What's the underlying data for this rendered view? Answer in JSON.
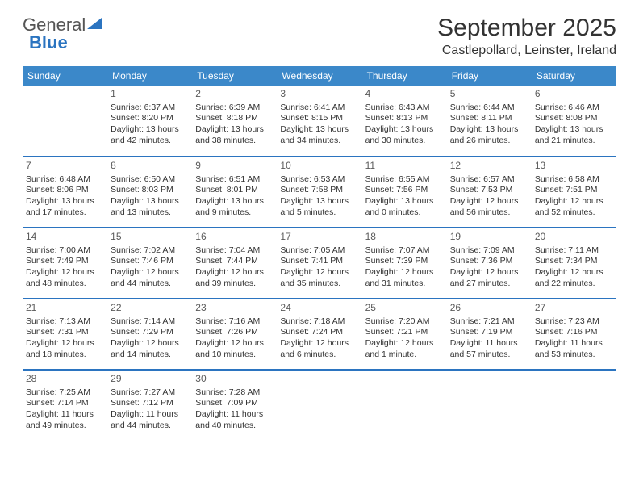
{
  "logo": {
    "word1": "General",
    "word2": "Blue"
  },
  "title": "September 2025",
  "location": "Castlepollard, Leinster, Ireland",
  "header_bg": "#3b88c9",
  "separator_color": "#2b74c0",
  "daynames": [
    "Sunday",
    "Monday",
    "Tuesday",
    "Wednesday",
    "Thursday",
    "Friday",
    "Saturday"
  ],
  "weeks": [
    [
      {
        "n": "",
        "sr": "",
        "ss": "",
        "dl": ""
      },
      {
        "n": "1",
        "sr": "Sunrise: 6:37 AM",
        "ss": "Sunset: 8:20 PM",
        "dl": "Daylight: 13 hours and 42 minutes."
      },
      {
        "n": "2",
        "sr": "Sunrise: 6:39 AM",
        "ss": "Sunset: 8:18 PM",
        "dl": "Daylight: 13 hours and 38 minutes."
      },
      {
        "n": "3",
        "sr": "Sunrise: 6:41 AM",
        "ss": "Sunset: 8:15 PM",
        "dl": "Daylight: 13 hours and 34 minutes."
      },
      {
        "n": "4",
        "sr": "Sunrise: 6:43 AM",
        "ss": "Sunset: 8:13 PM",
        "dl": "Daylight: 13 hours and 30 minutes."
      },
      {
        "n": "5",
        "sr": "Sunrise: 6:44 AM",
        "ss": "Sunset: 8:11 PM",
        "dl": "Daylight: 13 hours and 26 minutes."
      },
      {
        "n": "6",
        "sr": "Sunrise: 6:46 AM",
        "ss": "Sunset: 8:08 PM",
        "dl": "Daylight: 13 hours and 21 minutes."
      }
    ],
    [
      {
        "n": "7",
        "sr": "Sunrise: 6:48 AM",
        "ss": "Sunset: 8:06 PM",
        "dl": "Daylight: 13 hours and 17 minutes."
      },
      {
        "n": "8",
        "sr": "Sunrise: 6:50 AM",
        "ss": "Sunset: 8:03 PM",
        "dl": "Daylight: 13 hours and 13 minutes."
      },
      {
        "n": "9",
        "sr": "Sunrise: 6:51 AM",
        "ss": "Sunset: 8:01 PM",
        "dl": "Daylight: 13 hours and 9 minutes."
      },
      {
        "n": "10",
        "sr": "Sunrise: 6:53 AM",
        "ss": "Sunset: 7:58 PM",
        "dl": "Daylight: 13 hours and 5 minutes."
      },
      {
        "n": "11",
        "sr": "Sunrise: 6:55 AM",
        "ss": "Sunset: 7:56 PM",
        "dl": "Daylight: 13 hours and 0 minutes."
      },
      {
        "n": "12",
        "sr": "Sunrise: 6:57 AM",
        "ss": "Sunset: 7:53 PM",
        "dl": "Daylight: 12 hours and 56 minutes."
      },
      {
        "n": "13",
        "sr": "Sunrise: 6:58 AM",
        "ss": "Sunset: 7:51 PM",
        "dl": "Daylight: 12 hours and 52 minutes."
      }
    ],
    [
      {
        "n": "14",
        "sr": "Sunrise: 7:00 AM",
        "ss": "Sunset: 7:49 PM",
        "dl": "Daylight: 12 hours and 48 minutes."
      },
      {
        "n": "15",
        "sr": "Sunrise: 7:02 AM",
        "ss": "Sunset: 7:46 PM",
        "dl": "Daylight: 12 hours and 44 minutes."
      },
      {
        "n": "16",
        "sr": "Sunrise: 7:04 AM",
        "ss": "Sunset: 7:44 PM",
        "dl": "Daylight: 12 hours and 39 minutes."
      },
      {
        "n": "17",
        "sr": "Sunrise: 7:05 AM",
        "ss": "Sunset: 7:41 PM",
        "dl": "Daylight: 12 hours and 35 minutes."
      },
      {
        "n": "18",
        "sr": "Sunrise: 7:07 AM",
        "ss": "Sunset: 7:39 PM",
        "dl": "Daylight: 12 hours and 31 minutes."
      },
      {
        "n": "19",
        "sr": "Sunrise: 7:09 AM",
        "ss": "Sunset: 7:36 PM",
        "dl": "Daylight: 12 hours and 27 minutes."
      },
      {
        "n": "20",
        "sr": "Sunrise: 7:11 AM",
        "ss": "Sunset: 7:34 PM",
        "dl": "Daylight: 12 hours and 22 minutes."
      }
    ],
    [
      {
        "n": "21",
        "sr": "Sunrise: 7:13 AM",
        "ss": "Sunset: 7:31 PM",
        "dl": "Daylight: 12 hours and 18 minutes."
      },
      {
        "n": "22",
        "sr": "Sunrise: 7:14 AM",
        "ss": "Sunset: 7:29 PM",
        "dl": "Daylight: 12 hours and 14 minutes."
      },
      {
        "n": "23",
        "sr": "Sunrise: 7:16 AM",
        "ss": "Sunset: 7:26 PM",
        "dl": "Daylight: 12 hours and 10 minutes."
      },
      {
        "n": "24",
        "sr": "Sunrise: 7:18 AM",
        "ss": "Sunset: 7:24 PM",
        "dl": "Daylight: 12 hours and 6 minutes."
      },
      {
        "n": "25",
        "sr": "Sunrise: 7:20 AM",
        "ss": "Sunset: 7:21 PM",
        "dl": "Daylight: 12 hours and 1 minute."
      },
      {
        "n": "26",
        "sr": "Sunrise: 7:21 AM",
        "ss": "Sunset: 7:19 PM",
        "dl": "Daylight: 11 hours and 57 minutes."
      },
      {
        "n": "27",
        "sr": "Sunrise: 7:23 AM",
        "ss": "Sunset: 7:16 PM",
        "dl": "Daylight: 11 hours and 53 minutes."
      }
    ],
    [
      {
        "n": "28",
        "sr": "Sunrise: 7:25 AM",
        "ss": "Sunset: 7:14 PM",
        "dl": "Daylight: 11 hours and 49 minutes."
      },
      {
        "n": "29",
        "sr": "Sunrise: 7:27 AM",
        "ss": "Sunset: 7:12 PM",
        "dl": "Daylight: 11 hours and 44 minutes."
      },
      {
        "n": "30",
        "sr": "Sunrise: 7:28 AM",
        "ss": "Sunset: 7:09 PM",
        "dl": "Daylight: 11 hours and 40 minutes."
      },
      {
        "n": "",
        "sr": "",
        "ss": "",
        "dl": ""
      },
      {
        "n": "",
        "sr": "",
        "ss": "",
        "dl": ""
      },
      {
        "n": "",
        "sr": "",
        "ss": "",
        "dl": ""
      },
      {
        "n": "",
        "sr": "",
        "ss": "",
        "dl": ""
      }
    ]
  ]
}
